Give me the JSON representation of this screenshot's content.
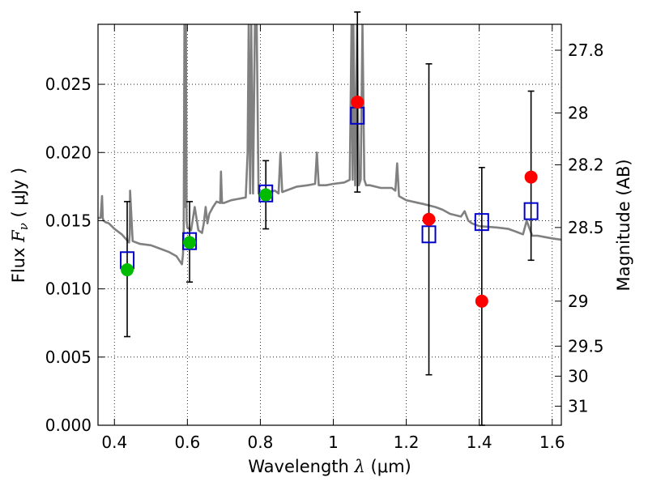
{
  "chart_data": {
    "type": "scatter",
    "xlabel": "Wavelength",
    "xlabel_symbol": "λ",
    "xlabel_unit": "(μm)",
    "ylabel": "Flux",
    "ylabel_symbol": "F",
    "ylabel_subscript": "ν",
    "ylabel_unit": "( μJy )",
    "y2label": "Magnitude (AB)",
    "xlim": [
      0.355,
      1.625
    ],
    "ylim": [
      0.0,
      0.0294
    ],
    "x_ticks": [
      0.4,
      0.6,
      0.8,
      1.0,
      1.2,
      1.4,
      1.6
    ],
    "x_tick_labels": [
      "0.4",
      "0.6",
      "0.8",
      "1",
      "1.2",
      "1.4",
      "1.6"
    ],
    "y_ticks": [
      0.0,
      0.005,
      0.01,
      0.015,
      0.02,
      0.025
    ],
    "y_tick_labels": [
      "0.000",
      "0.005",
      "0.010",
      "0.015",
      "0.020",
      "0.025"
    ],
    "y2_ticks": [
      {
        "flux": 0.0275,
        "label": "27.8"
      },
      {
        "flux": 0.0229,
        "label": "28"
      },
      {
        "flux": 0.0191,
        "label": "28.2"
      },
      {
        "flux": 0.0145,
        "label": "28.5"
      },
      {
        "flux": 0.0091,
        "label": "29"
      },
      {
        "flux": 0.0058,
        "label": "29.5"
      },
      {
        "flux": 0.0036,
        "label": "30"
      },
      {
        "flux": 0.0014,
        "label": "31"
      }
    ],
    "grid": true,
    "series": [
      {
        "role": "model-sed",
        "type": "line",
        "color": "#808080",
        "x": [
          0.355,
          0.362,
          0.366,
          0.368,
          0.37,
          0.375,
          0.385,
          0.4,
          0.42,
          0.44,
          0.442,
          0.443,
          0.45,
          0.47,
          0.5,
          0.52,
          0.55,
          0.57,
          0.585,
          0.588,
          0.59,
          0.592,
          0.594,
          0.596,
          0.598,
          0.6,
          0.61,
          0.62,
          0.63,
          0.64,
          0.645,
          0.65,
          0.655,
          0.66,
          0.67,
          0.68,
          0.69,
          0.692,
          0.695,
          0.7,
          0.72,
          0.74,
          0.76,
          0.765,
          0.768,
          0.772,
          0.775,
          0.78,
          0.785,
          0.79,
          0.795,
          0.8,
          0.82,
          0.84,
          0.85,
          0.855,
          0.86,
          0.87,
          0.9,
          0.93,
          0.95,
          0.955,
          0.96,
          0.98,
          1.0,
          1.03,
          1.045,
          1.05,
          1.053,
          1.055,
          1.06,
          1.065,
          1.07,
          1.075,
          1.08,
          1.085,
          1.09,
          1.1,
          1.13,
          1.16,
          1.17,
          1.175,
          1.18,
          1.2,
          1.25,
          1.28,
          1.3,
          1.32,
          1.35,
          1.36,
          1.37,
          1.38,
          1.4,
          1.45,
          1.48,
          1.5,
          1.52,
          1.53,
          1.545,
          1.56,
          1.58,
          1.6,
          1.625
        ],
        "y": [
          0.0152,
          0.0152,
          0.0168,
          0.0152,
          0.015,
          0.0149,
          0.0148,
          0.0144,
          0.014,
          0.0134,
          0.014,
          0.0172,
          0.0135,
          0.0133,
          0.0132,
          0.013,
          0.0127,
          0.0124,
          0.0118,
          0.0125,
          0.014,
          0.0294,
          0.016,
          0.0294,
          0.015,
          0.0145,
          0.0143,
          0.016,
          0.0143,
          0.0141,
          0.0148,
          0.016,
          0.0148,
          0.0155,
          0.016,
          0.0164,
          0.0163,
          0.0186,
          0.0163,
          0.0163,
          0.0165,
          0.0166,
          0.0167,
          0.02,
          0.0294,
          0.017,
          0.0294,
          0.017,
          0.0294,
          0.0294,
          0.017,
          0.017,
          0.0171,
          0.0172,
          0.017,
          0.02,
          0.0171,
          0.0172,
          0.0175,
          0.0176,
          0.0177,
          0.02,
          0.0176,
          0.0176,
          0.0177,
          0.0178,
          0.018,
          0.0294,
          0.018,
          0.0294,
          0.0176,
          0.0294,
          0.0176,
          0.018,
          0.0294,
          0.018,
          0.0176,
          0.0176,
          0.0174,
          0.0174,
          0.0172,
          0.0192,
          0.0168,
          0.0165,
          0.0162,
          0.016,
          0.0158,
          0.0155,
          0.0153,
          0.0157,
          0.015,
          0.0148,
          0.0146,
          0.0145,
          0.0144,
          0.0142,
          0.014,
          0.015,
          0.0139,
          0.0139,
          0.0138,
          0.0137,
          0.0136
        ]
      },
      {
        "role": "model-photometry",
        "type": "scatter",
        "marker": "open-square",
        "color": "#0000cc",
        "x": [
          0.435,
          0.606,
          0.815,
          1.066,
          1.262,
          1.407,
          1.542
        ],
        "y": [
          0.0121,
          0.0135,
          0.017,
          0.0227,
          0.014,
          0.0149,
          0.0157
        ]
      },
      {
        "role": "observed-photometry",
        "type": "scatter",
        "marker": "filled-circle",
        "x": [
          0.435,
          0.606,
          0.815,
          1.066,
          1.262,
          1.407,
          1.542
        ],
        "y": [
          0.0114,
          0.0134,
          0.0169,
          0.0237,
          0.0151,
          0.0091,
          0.0182
        ],
        "yerr_low": [
          0.0049,
          0.0029,
          0.0025,
          0.0066,
          0.0114,
          0.0091,
          0.0061
        ],
        "yerr_high": [
          0.005,
          0.003,
          0.0025,
          0.0066,
          0.0114,
          0.0098,
          0.0063
        ],
        "colors": [
          "#00bb00",
          "#00bb00",
          "#00bb00",
          "#ff0000",
          "#ff0000",
          "#ff0000",
          "#ff0000"
        ]
      }
    ]
  }
}
